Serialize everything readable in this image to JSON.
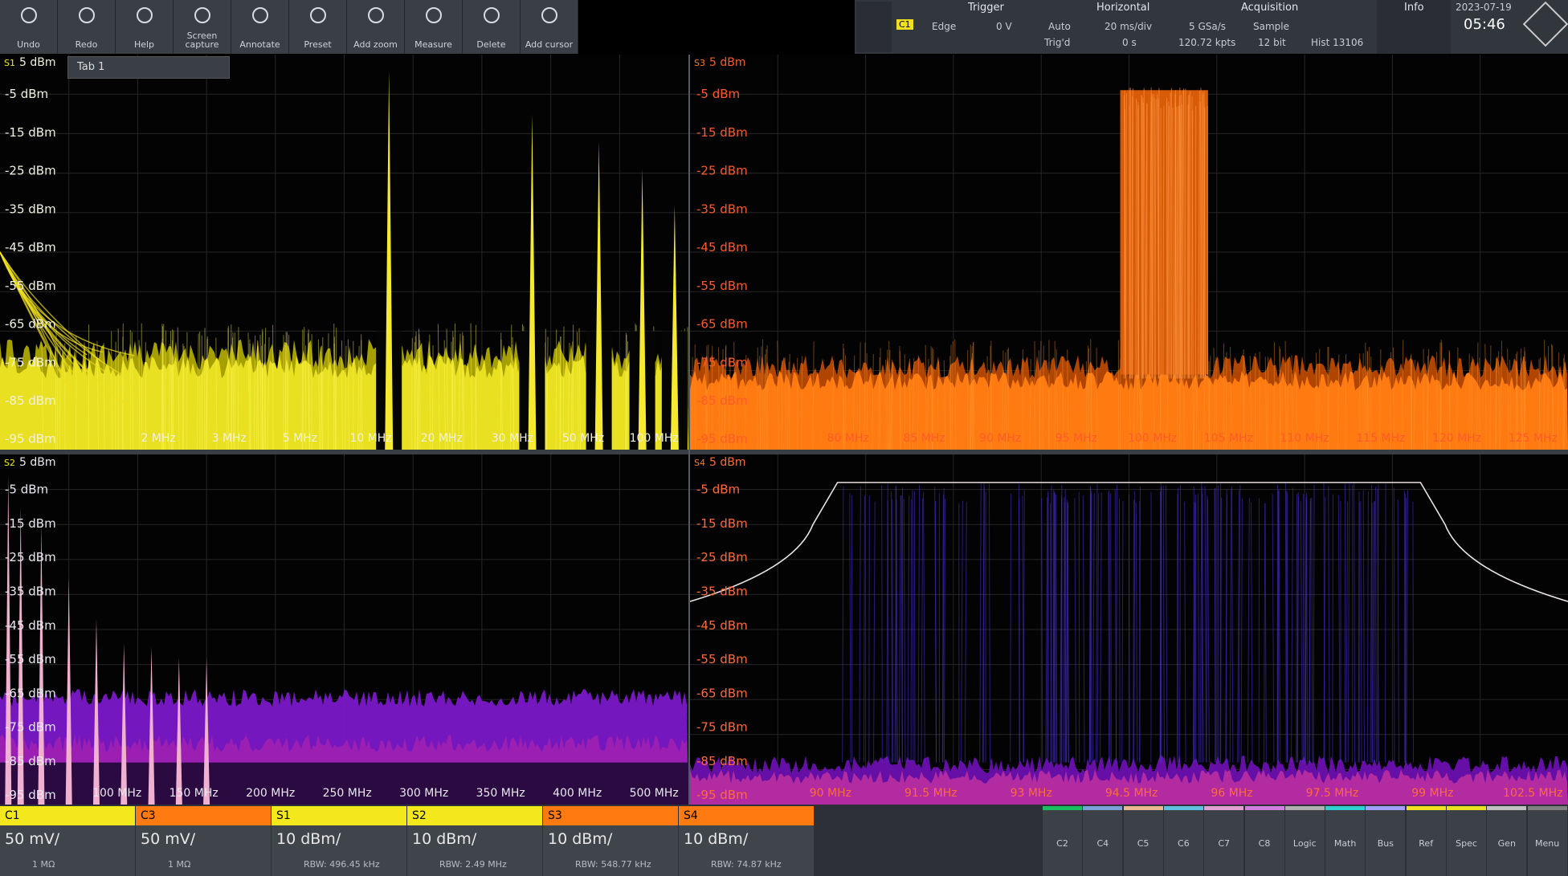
{
  "toolbar": {
    "buttons": [
      "Undo",
      "Redo",
      "Help",
      "Screen capture",
      "Annotate",
      "Preset",
      "Add zoom",
      "Measure",
      "Delete",
      "Add cursor"
    ]
  },
  "status": {
    "trigger": {
      "title": "Trigger",
      "source": "C1",
      "type": "Edge",
      "level": "0 V",
      "mode": "Auto",
      "state": "Trig'd"
    },
    "horizontal": {
      "title": "Horizontal",
      "scale": "20 ms/div",
      "position": "0 s"
    },
    "acquisition": {
      "title": "Acquisition",
      "rate": "5 GSa/s",
      "mode": "Sample",
      "points": "120.72 kpts",
      "resolution": "12 bit",
      "count": "Hist 13106"
    },
    "info": {
      "title": "Info"
    },
    "date": "2023-07-19",
    "time": "05:46"
  },
  "panels": [
    {
      "tag": "S1",
      "tab": "Tab 1",
      "top_label": "5 dBm",
      "y_labels": [
        "-5 dBm",
        "-15 dBm",
        "-25 dBm",
        "-35 dBm",
        "-45 dBm",
        "-55 dBm",
        "-65 dBm",
        "-75 dBm",
        "-85 dBm",
        "-95 dBm"
      ],
      "x_labels": [
        "2 MHz",
        "3 MHz",
        "5 MHz",
        "10 MHz",
        "20 MHz",
        "30 MHz",
        "50 MHz",
        "100 MHz"
      ]
    },
    {
      "tag": "S3",
      "top_label": "5 dBm",
      "y_labels": [
        "-5 dBm",
        "-15 dBm",
        "-25 dBm",
        "-35 dBm",
        "-45 dBm",
        "-55 dBm",
        "-65 dBm",
        "-75 dBm",
        "-85 dBm",
        "-95 dBm"
      ],
      "x_labels": [
        "80 MHz",
        "85 MHz",
        "90 MHz",
        "95 MHz",
        "100 MHz",
        "105 MHz",
        "110 MHz",
        "115 MHz",
        "120 MHz",
        "125 MHz"
      ]
    },
    {
      "tag": "S2",
      "top_label": "5 dBm",
      "y_labels": [
        "-5 dBm",
        "-15 dBm",
        "-25 dBm",
        "-35 dBm",
        "-45 dBm",
        "-55 dBm",
        "-65 dBm",
        "-75 dBm",
        "-85 dBm",
        "-95 dBm"
      ],
      "x_labels": [
        "100 MHz",
        "150 MHz",
        "200 MHz",
        "250 MHz",
        "300 MHz",
        "350 MHz",
        "400 MHz",
        "500 MHz"
      ]
    },
    {
      "tag": "S4",
      "top_label": "5 dBm",
      "y_labels": [
        "-5 dBm",
        "-15 dBm",
        "-25 dBm",
        "-35 dBm",
        "-45 dBm",
        "-55 dBm",
        "-65 dBm",
        "-75 dBm",
        "-85 dBm",
        "-95 dBm"
      ],
      "x_labels": [
        "90 MHz",
        "91.5 MHz",
        "93 MHz",
        "94.5 MHz",
        "96 MHz",
        "97.5 MHz",
        "99 MHz",
        "102.5 MHz"
      ]
    }
  ],
  "channels": [
    {
      "name": "C1",
      "scale": "50 mV/",
      "detail": "1 MΩ"
    },
    {
      "name": "C3",
      "scale": "50 mV/",
      "detail": "1 MΩ"
    },
    {
      "name": "S1",
      "scale": "10 dBm/",
      "detail": "RBW: 496.45 kHz"
    },
    {
      "name": "S2",
      "scale": "10 dBm/",
      "detail": "RBW: 2.49 MHz"
    },
    {
      "name": "S3",
      "scale": "10 dBm/",
      "detail": "RBW: 548.77 kHz"
    },
    {
      "name": "S4",
      "scale": "10 dBm/",
      "detail": "RBW: 74.87 kHz"
    }
  ],
  "side_buttons": [
    "C2",
    "C4",
    "C5",
    "C6",
    "C7",
    "C8",
    "Logic",
    "Math",
    "Bus",
    "Ref",
    "Spec",
    "Gen",
    "Menu"
  ]
}
